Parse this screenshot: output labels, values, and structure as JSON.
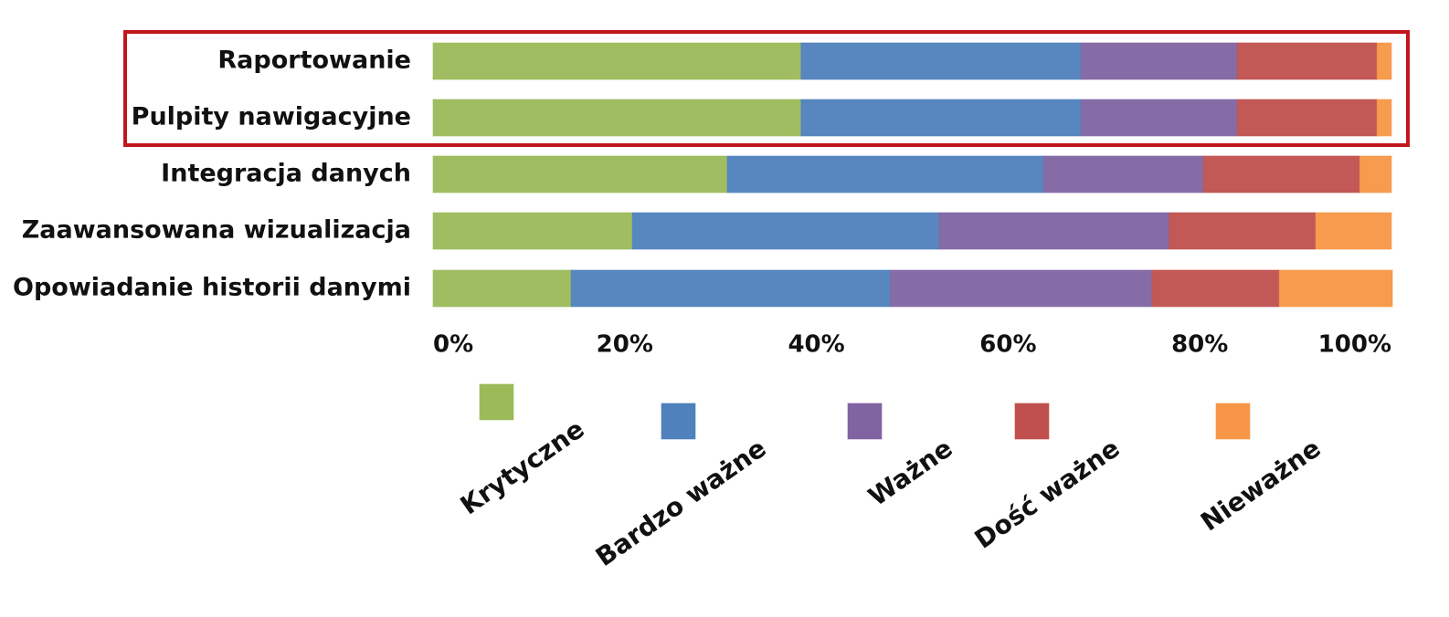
{
  "chart_data": {
    "type": "stacked-bar-horizontal",
    "categories": [
      "Raportowanie",
      "Pulpity nawigacyjne",
      "Integracja danych",
      "Zaawansowana wizualizacja",
      "Opowiadanie historii danymi"
    ],
    "series": [
      {
        "name": "Krytyczne",
        "color": "#9bbb59",
        "values": [
          38.4,
          38.4,
          30.7,
          20.8,
          14.4
        ]
      },
      {
        "name": "Bardzo ważne",
        "color": "#4f81bd",
        "values": [
          29.2,
          29.2,
          33.0,
          32.0,
          33.3
        ]
      },
      {
        "name": "Ważne",
        "color": "#8064a2",
        "values": [
          16.3,
          16.3,
          16.7,
          24.0,
          27.3
        ]
      },
      {
        "name": "Dość ważne",
        "color": "#c0504d",
        "values": [
          14.6,
          14.6,
          16.3,
          15.3,
          13.3
        ]
      },
      {
        "name": "Nieważne",
        "color": "#f79646",
        "values": [
          1.5,
          1.5,
          3.3,
          7.9,
          11.8
        ]
      }
    ],
    "xlim": [
      0,
      100
    ],
    "xticks": [
      {
        "value": 0,
        "label": "0%"
      },
      {
        "value": 20,
        "label": "20%"
      },
      {
        "value": 40,
        "label": "40%"
      },
      {
        "value": 60,
        "label": "60%"
      },
      {
        "value": 80,
        "label": "80%"
      },
      {
        "value": 100,
        "label": "100%"
      }
    ]
  }
}
